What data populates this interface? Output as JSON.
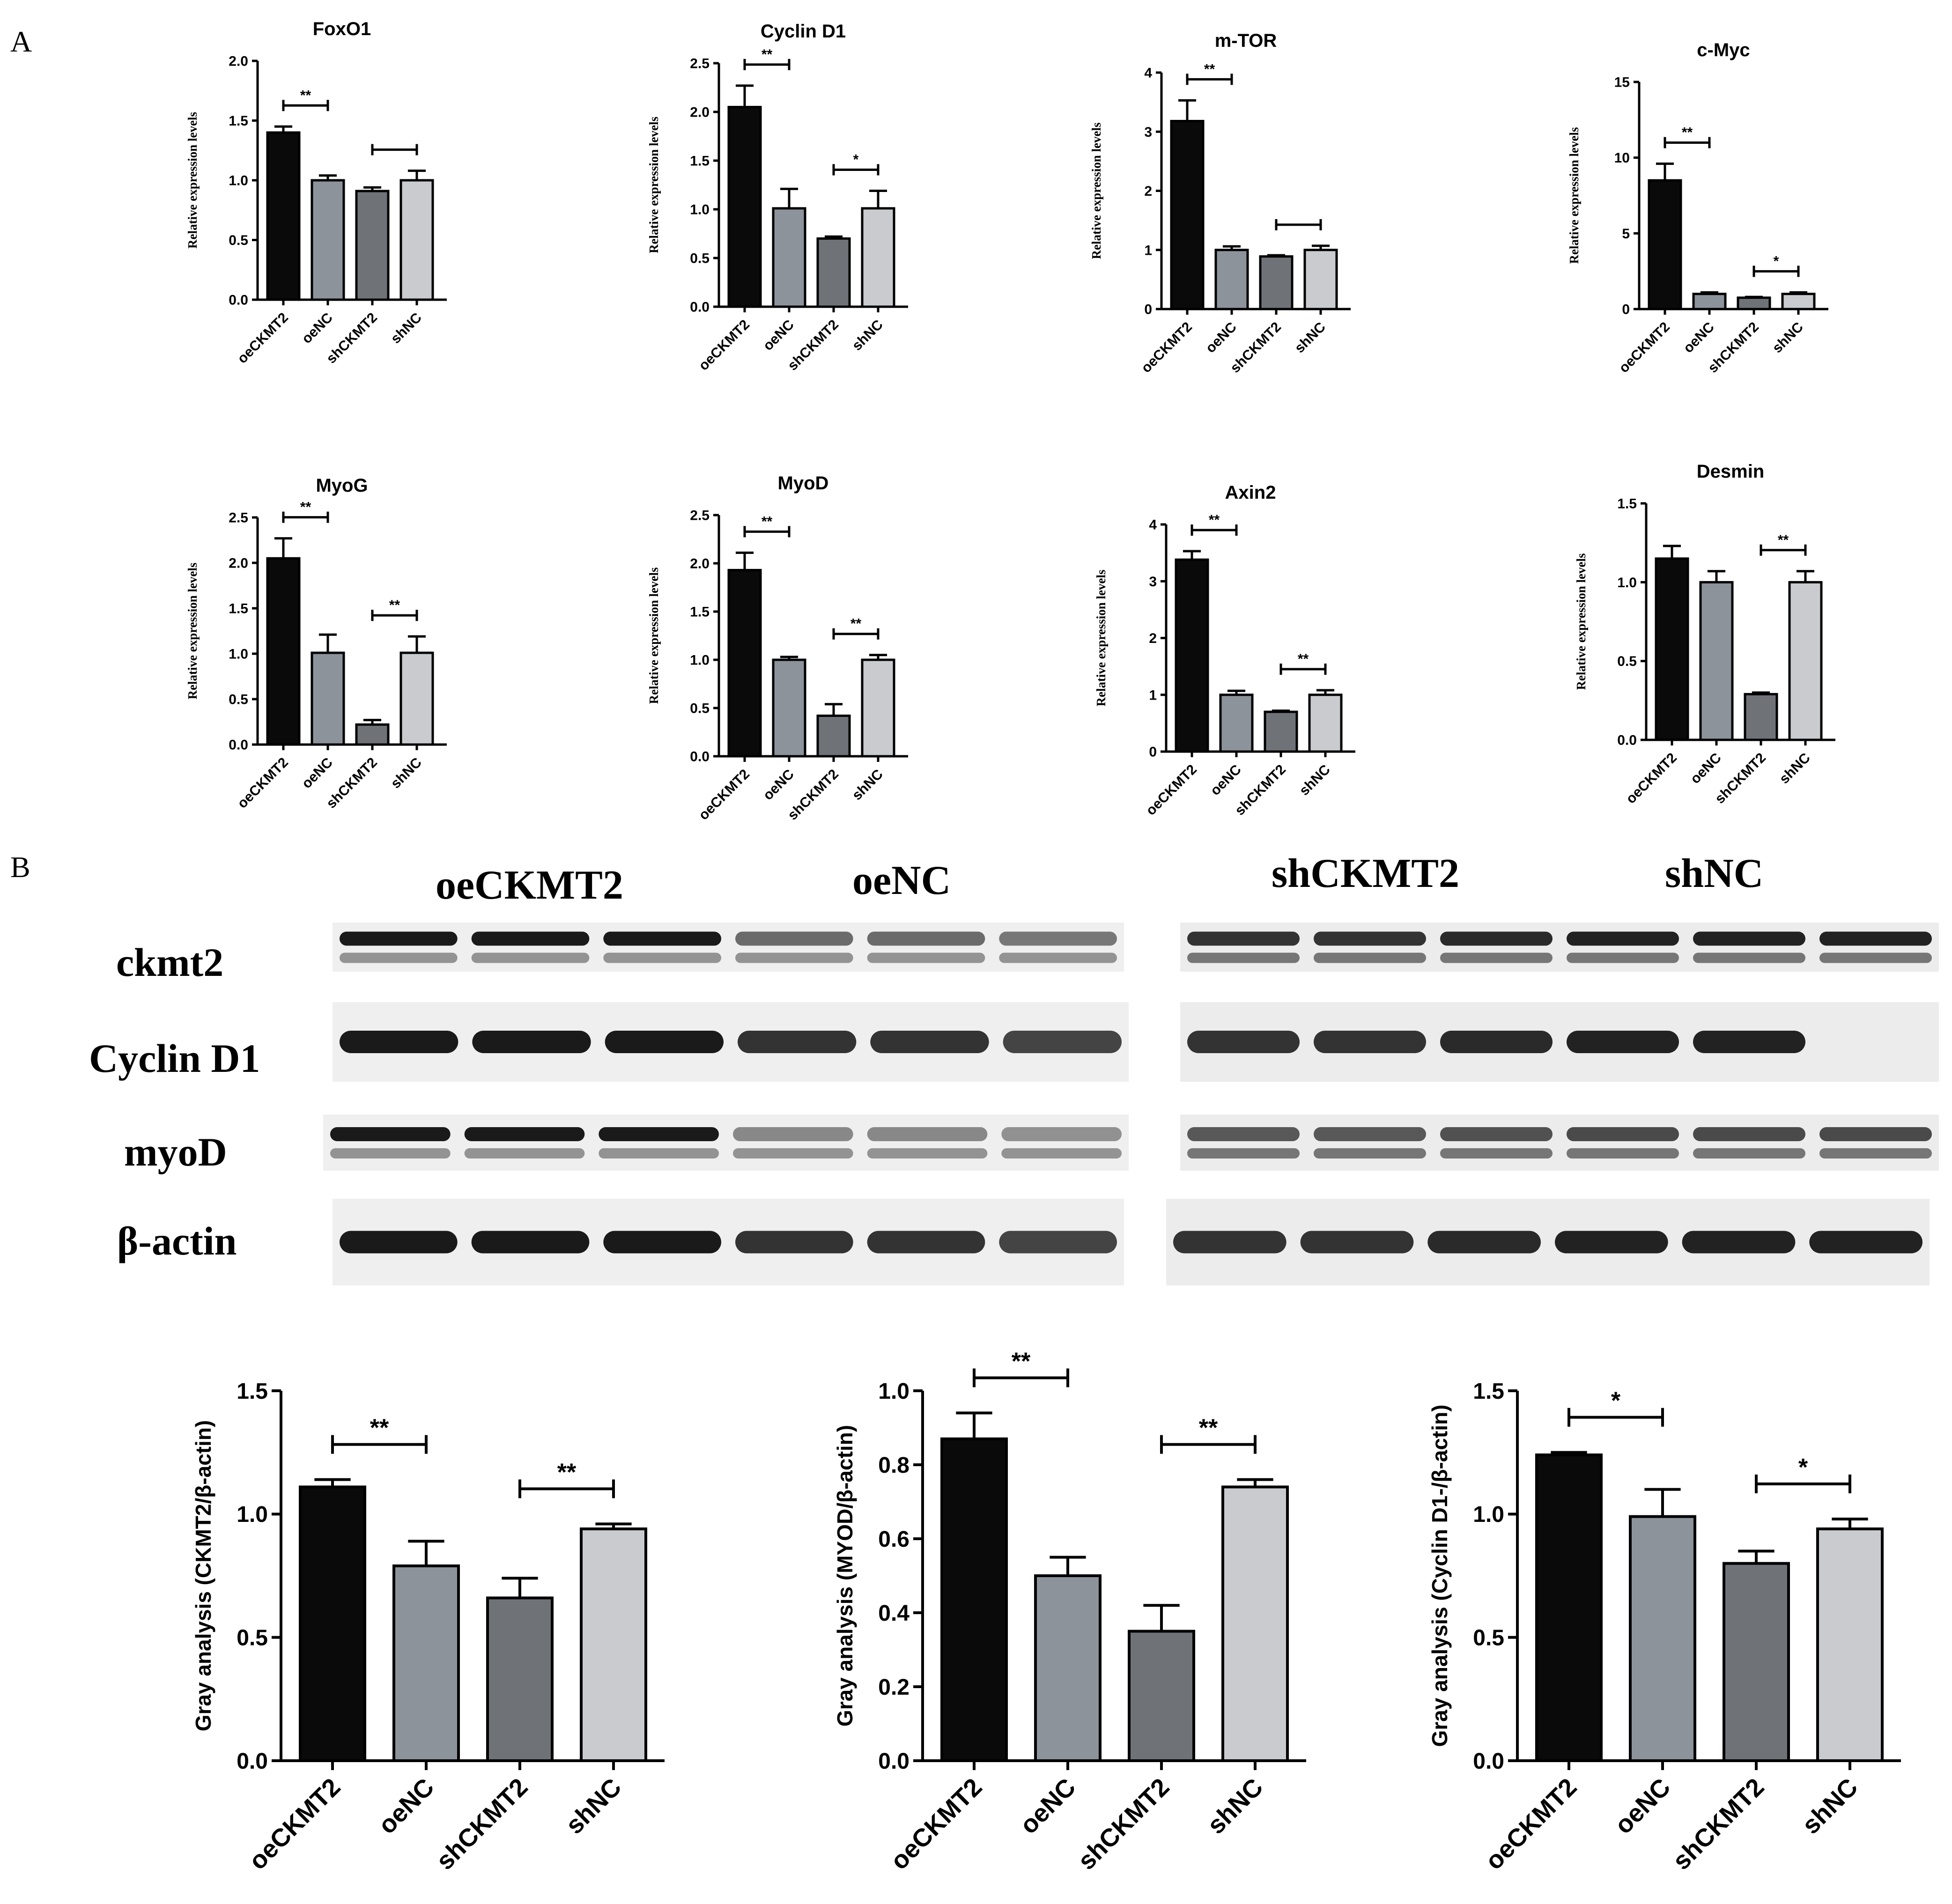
{
  "panels": {
    "a_label": "A",
    "b_label": "B"
  },
  "colors": {
    "oeCKMT2": "#0a0a0a",
    "oeNC": "#8d939b",
    "shCKMT2": "#6f7378",
    "shNC": "#c9cbcf"
  },
  "western_blot": {
    "group_labels": [
      "oeCKMT2",
      "oeNC",
      "shCKMT2",
      "shNC"
    ],
    "row_labels": [
      "ckmt2",
      "Cyclin D1",
      "myoD",
      "β-actin"
    ]
  },
  "chart_data": [
    {
      "type": "bar",
      "title": "FoxO1",
      "ylabel": "Relative expression levels",
      "categories": [
        "oeCKMT2",
        "oeNC",
        "shCKMT2",
        "shNC"
      ],
      "values": [
        1.4,
        1.0,
        0.91,
        1.0
      ],
      "errors": [
        0.05,
        0.04,
        0.03,
        0.08
      ],
      "ylim": [
        0,
        2.0
      ],
      "yticks": [
        "0.0",
        "0.5",
        "1.0",
        "1.5",
        "2.0"
      ],
      "significance": [
        {
          "between": [
            0,
            1
          ],
          "label": "**"
        },
        {
          "between": [
            2,
            3
          ],
          "label": ""
        }
      ]
    },
    {
      "type": "bar",
      "title": "Cyclin D1",
      "ylabel": "Relative expression levels",
      "categories": [
        "oeCKMT2",
        "oeNC",
        "shCKMT2",
        "shNC"
      ],
      "values": [
        2.05,
        1.01,
        0.7,
        1.01
      ],
      "errors": [
        0.22,
        0.2,
        0.02,
        0.18
      ],
      "ylim": [
        0,
        2.5
      ],
      "yticks": [
        "0.0",
        "0.5",
        "1.0",
        "1.5",
        "2.0",
        "2.5"
      ],
      "significance": [
        {
          "between": [
            0,
            1
          ],
          "label": "**"
        },
        {
          "between": [
            2,
            3
          ],
          "label": "*"
        }
      ]
    },
    {
      "type": "bar",
      "title": "m-TOR",
      "ylabel": "Relative expression levels",
      "categories": [
        "oeCKMT2",
        "oeNC",
        "shCKMT2",
        "shNC"
      ],
      "values": [
        3.18,
        1.0,
        0.89,
        1.0
      ],
      "errors": [
        0.35,
        0.06,
        0.02,
        0.07
      ],
      "ylim": [
        0,
        4
      ],
      "yticks": [
        "0",
        "1",
        "2",
        "3",
        "4"
      ],
      "significance": [
        {
          "between": [
            0,
            1
          ],
          "label": "**"
        },
        {
          "between": [
            2,
            3
          ],
          "label": ""
        }
      ]
    },
    {
      "type": "bar",
      "title": "c-Myc",
      "ylabel": "Relative expression levels",
      "categories": [
        "oeCKMT2",
        "oeNC",
        "shCKMT2",
        "shNC"
      ],
      "values": [
        8.5,
        1.0,
        0.75,
        1.0
      ],
      "errors": [
        1.1,
        0.1,
        0.05,
        0.1
      ],
      "ylim": [
        0,
        15
      ],
      "yticks": [
        "0",
        "5",
        "10",
        "15"
      ],
      "significance": [
        {
          "between": [
            0,
            1
          ],
          "label": "**"
        },
        {
          "between": [
            2,
            3
          ],
          "label": "*"
        }
      ]
    },
    {
      "type": "bar",
      "title": "MyoG",
      "ylabel": "Relative expression levels",
      "categories": [
        "oeCKMT2",
        "oeNC",
        "shCKMT2",
        "shNC"
      ],
      "values": [
        2.05,
        1.01,
        0.22,
        1.01
      ],
      "errors": [
        0.22,
        0.2,
        0.05,
        0.18
      ],
      "ylim": [
        0,
        2.5
      ],
      "yticks": [
        "0.0",
        "0.5",
        "1.0",
        "1.5",
        "2.0",
        "2.5"
      ],
      "significance": [
        {
          "between": [
            0,
            1
          ],
          "label": "**"
        },
        {
          "between": [
            2,
            3
          ],
          "label": "**"
        }
      ]
    },
    {
      "type": "bar",
      "title": "MyoD",
      "ylabel": "Relative expression levels",
      "categories": [
        "oeCKMT2",
        "oeNC",
        "shCKMT2",
        "shNC"
      ],
      "values": [
        1.93,
        1.0,
        0.42,
        1.0
      ],
      "errors": [
        0.18,
        0.03,
        0.12,
        0.05
      ],
      "ylim": [
        0,
        2.5
      ],
      "yticks": [
        "0.0",
        "0.5",
        "1.0",
        "1.5",
        "2.0",
        "2.5"
      ],
      "significance": [
        {
          "between": [
            0,
            1
          ],
          "label": "**"
        },
        {
          "between": [
            2,
            3
          ],
          "label": "**"
        }
      ]
    },
    {
      "type": "bar",
      "title": "Axin2",
      "ylabel": "Relative expression levels",
      "categories": [
        "oeCKMT2",
        "oeNC",
        "shCKMT2",
        "shNC"
      ],
      "values": [
        3.38,
        1.0,
        0.7,
        1.0
      ],
      "errors": [
        0.15,
        0.07,
        0.02,
        0.08
      ],
      "ylim": [
        0,
        4
      ],
      "yticks": [
        "0",
        "1",
        "2",
        "3",
        "4"
      ],
      "significance": [
        {
          "between": [
            0,
            1
          ],
          "label": "**"
        },
        {
          "between": [
            2,
            3
          ],
          "label": "**"
        }
      ]
    },
    {
      "type": "bar",
      "title": "Desmin",
      "ylabel": "Relative expression levels",
      "categories": [
        "oeCKMT2",
        "oeNC",
        "shCKMT2",
        "shNC"
      ],
      "values": [
        1.15,
        1.0,
        0.29,
        1.0
      ],
      "errors": [
        0.08,
        0.07,
        0.01,
        0.07
      ],
      "ylim": [
        0,
        1.5
      ],
      "yticks": [
        "0.0",
        "0.5",
        "1.0",
        "1.5"
      ],
      "significance": [
        {
          "between": [
            2,
            3
          ],
          "label": "**"
        }
      ]
    },
    {
      "type": "bar",
      "title": "",
      "ylabel": "Gray analysis (CKMT2/β-actin)",
      "categories": [
        "oeCKMT2",
        "oeNC",
        "shCKMT2",
        "shNC"
      ],
      "values": [
        1.11,
        0.79,
        0.66,
        0.94
      ],
      "errors": [
        0.03,
        0.1,
        0.08,
        0.02
      ],
      "ylim": [
        0,
        1.5
      ],
      "yticks": [
        "0.0",
        "0.5",
        "1.0",
        "1.5"
      ],
      "significance": [
        {
          "between": [
            0,
            1
          ],
          "label": "**"
        },
        {
          "between": [
            2,
            3
          ],
          "label": "**"
        }
      ]
    },
    {
      "type": "bar",
      "title": "",
      "ylabel": "Gray analysis (MYOD/β-actin)",
      "categories": [
        "oeCKMT2",
        "oeNC",
        "shCKMT2",
        "shNC"
      ],
      "values": [
        0.87,
        0.5,
        0.35,
        0.74
      ],
      "errors": [
        0.07,
        0.05,
        0.07,
        0.02
      ],
      "ylim": [
        0,
        1.0
      ],
      "yticks": [
        "0.0",
        "0.2",
        "0.4",
        "0.6",
        "0.8",
        "1.0"
      ],
      "significance": [
        {
          "between": [
            0,
            1
          ],
          "label": "**"
        },
        {
          "between": [
            2,
            3
          ],
          "label": "**"
        }
      ]
    },
    {
      "type": "bar",
      "title": "",
      "ylabel": "Gray analysis (Cyclin D1-/β-actin)",
      "categories": [
        "oeCKMT2",
        "oeNC",
        "shCKMT2",
        "shNC"
      ],
      "values": [
        1.24,
        0.99,
        0.8,
        0.94
      ],
      "errors": [
        0.01,
        0.11,
        0.05,
        0.04
      ],
      "ylim": [
        0,
        1.5
      ],
      "yticks": [
        "0.0",
        "0.5",
        "1.0",
        "1.5"
      ],
      "significance": [
        {
          "between": [
            0,
            1
          ],
          "label": "*"
        },
        {
          "between": [
            2,
            3
          ],
          "label": "*"
        }
      ]
    }
  ]
}
